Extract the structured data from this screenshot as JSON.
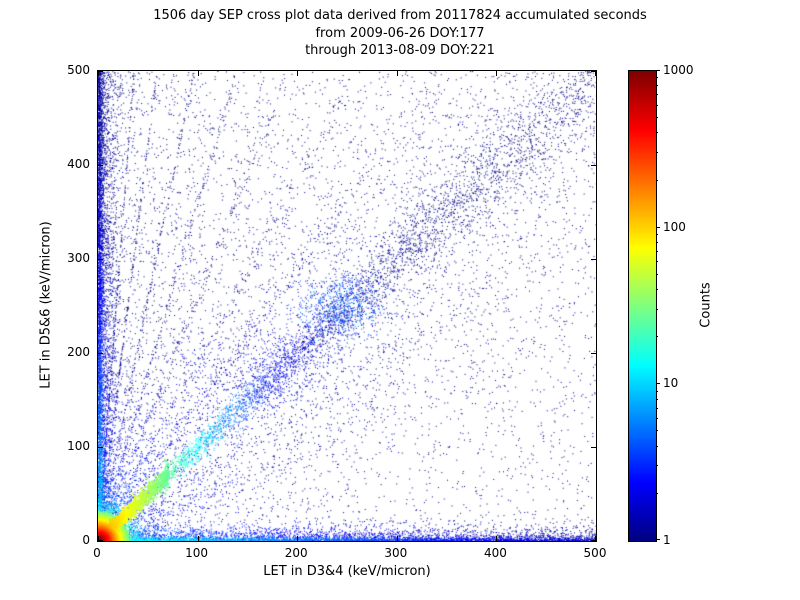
{
  "title": {
    "line1": "1506 day SEP cross plot data derived from 20117824 accumulated seconds",
    "line2": "from 2009-06-26 DOY:177",
    "line3": "through 2013-08-09 DOY:221"
  },
  "chart_data": {
    "type": "heatmap",
    "title": "1506 day SEP cross plot data derived from 20117824 accumulated seconds",
    "subtitle_from": "from 2009-06-26 DOY:177",
    "subtitle_through": "through 2013-08-09 DOY:221",
    "days": 1506,
    "accumulated_seconds": 20117824,
    "date_from": "2009-06-26",
    "doy_from": 177,
    "date_through": "2013-08-09",
    "doy_through": 221,
    "xlabel": "LET in D3&4 (keV/micron)",
    "ylabel": "LET in D5&6 (keV/micron)",
    "xlim": [
      0,
      500
    ],
    "ylim": [
      0,
      500
    ],
    "x_ticks": [
      0,
      100,
      200,
      300,
      400,
      500
    ],
    "y_ticks": [
      0,
      100,
      200,
      300,
      400,
      500
    ],
    "grid": false,
    "colorbar": {
      "label": "Counts",
      "scale": "log",
      "min": 1,
      "max": 1000,
      "ticks": [
        1,
        10,
        100,
        1000
      ],
      "colormap": "jet"
    },
    "description": "2D density cross-plot of linear energy transfer in detector pair D5&6 vs D3&4. Intense red/orange hotspot of ~1000 counts at the origin, a bright cyan-green diagonal ridge y=x fading by ~(120,120) with a diffuse blue blob near (245,250), cyan horizontal band along y~4 and vertical band along x~4 fading with distance, a fan of faint blue rays from the origin above the diagonal, and a sparse dark-blue background (1 count) densest in the left half.",
    "render_seed": 42,
    "features": [
      {
        "kind": "bg_left",
        "n": 3800,
        "pow": 2.6
      },
      {
        "kind": "bg_uniform",
        "n": 1600
      },
      {
        "kind": "bg_diag_cloud",
        "n": 2600,
        "sigma": 55
      },
      {
        "kind": "vband",
        "x_sigma": 9,
        "pow": 1.25,
        "n": 2200,
        "base": 1,
        "peak": 3,
        "falloff": 150
      },
      {
        "kind": "vband",
        "x_sigma": 2.5,
        "pow": 1.1,
        "n": 2200,
        "base": 1,
        "peak": 12,
        "falloff": 120
      },
      {
        "kind": "hband",
        "y_sigma": 8,
        "pow": 1.2,
        "n": 2400,
        "base": 1,
        "peak": 4,
        "falloff": 180
      },
      {
        "kind": "hband",
        "y_sigma": 2.2,
        "pow": 1.05,
        "n": 2600,
        "base": 1,
        "peak": 16,
        "falloff": 160
      },
      {
        "kind": "ray",
        "slope": 1.0,
        "sigma": 2.5,
        "grow": 0.05,
        "n": 4200,
        "pow": 1.9,
        "base": 1,
        "peak": 150,
        "falloff": 55
      },
      {
        "kind": "blob",
        "cx": 246,
        "cy": 250,
        "sx": 20,
        "sy": 16,
        "n": 650,
        "count": 4
      },
      {
        "kind": "blob",
        "cx": 180,
        "cy": 182,
        "sx": 30,
        "sy": 25,
        "n": 350,
        "count": 2
      },
      {
        "kind": "ray",
        "slope": 1.45,
        "sigma": 3,
        "grow": 0.03,
        "n": 300,
        "pow": 1.6,
        "base": 1,
        "peak": 6,
        "falloff": 80
      },
      {
        "kind": "ray",
        "slope": 1.9,
        "sigma": 3,
        "grow": 0.03,
        "n": 300,
        "pow": 1.6,
        "base": 1,
        "peak": 7,
        "falloff": 70
      },
      {
        "kind": "ray",
        "slope": 2.6,
        "sigma": 3,
        "grow": 0.03,
        "n": 280,
        "pow": 1.6,
        "base": 1,
        "peak": 8,
        "falloff": 60
      },
      {
        "kind": "ray",
        "slope": 3.6,
        "sigma": 2.5,
        "grow": 0.02,
        "n": 260,
        "pow": 1.6,
        "base": 1,
        "peak": 8,
        "falloff": 55
      },
      {
        "kind": "ray",
        "slope": 5.2,
        "sigma": 2.2,
        "grow": 0.02,
        "n": 240,
        "pow": 1.6,
        "base": 1,
        "peak": 9,
        "falloff": 50
      },
      {
        "kind": "ray",
        "slope": 8.5,
        "sigma": 2.0,
        "grow": 0.02,
        "n": 240,
        "pow": 1.5,
        "base": 1,
        "peak": 10,
        "falloff": 45
      },
      {
        "kind": "ray",
        "slope": 14.0,
        "sigma": 1.8,
        "grow": 0.02,
        "n": 240,
        "pow": 1.5,
        "base": 1,
        "peak": 10,
        "falloff": 40
      },
      {
        "kind": "ray",
        "slope": 0.66,
        "sigma": 3,
        "grow": 0.03,
        "n": 220,
        "pow": 1.7,
        "base": 1,
        "peak": 5,
        "falloff": 70
      },
      {
        "kind": "ray",
        "slope": 0.45,
        "sigma": 3,
        "grow": 0.03,
        "n": 200,
        "pow": 1.7,
        "base": 1,
        "peak": 5,
        "falloff": 60
      },
      {
        "kind": "hotspot",
        "scale": 13,
        "n": 5200,
        "peak": 1000,
        "r_falloff": 8.5
      }
    ]
  },
  "colors": {
    "background": "#ffffff",
    "axis": "#000000",
    "jet_low": "#00007f",
    "jet_high": "#7f0000"
  }
}
